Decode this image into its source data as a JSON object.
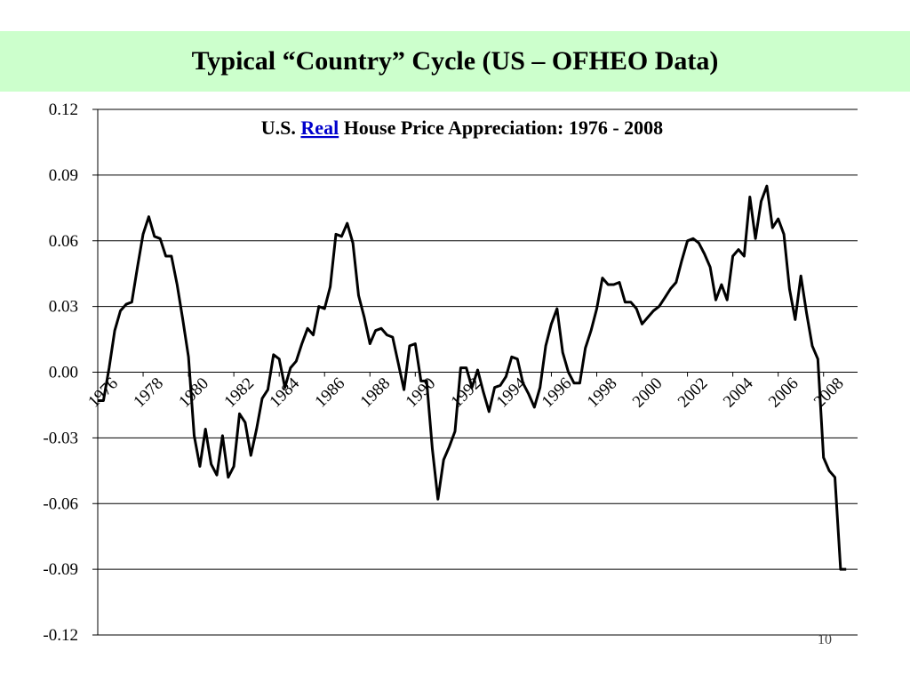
{
  "slide": {
    "title": "Typical “Country” Cycle (US – OFHEO Data)",
    "page_number": "10",
    "accent_color": "#ccffcc"
  },
  "chart_data": {
    "type": "line",
    "title_parts": {
      "prefix": "U.S. ",
      "emphasis": "Real",
      "suffix": " House Price Appreciation:  1976 - 2008"
    },
    "xlabel": "",
    "ylabel": "",
    "ylim": [
      -0.12,
      0.12
    ],
    "xlim": [
      1976,
      2009.5
    ],
    "y_ticks": [
      "0.12",
      "0.09",
      "0.06",
      "0.03",
      "0.00",
      "-0.03",
      "-0.06",
      "-0.09",
      "-0.12"
    ],
    "x_ticks": [
      "1976",
      "1978",
      "1980",
      "1982",
      "1984",
      "1986",
      "1988",
      "1990",
      "1992",
      "1994",
      "1996",
      "1998",
      "2000",
      "2002",
      "2004",
      "2006",
      "2008"
    ],
    "grid": true,
    "line_color": "#000000",
    "series": [
      {
        "x": [
          1976.0,
          1976.25,
          1976.5,
          1976.75,
          1977.0,
          1977.25,
          1977.5,
          1977.75,
          1978.0,
          1978.25,
          1978.5,
          1978.75,
          1979.0,
          1979.25,
          1979.5,
          1979.75,
          1980.0,
          1980.25,
          1980.5,
          1980.75,
          1981.0,
          1981.25,
          1981.5,
          1981.75,
          1982.0,
          1982.25,
          1982.5,
          1982.75,
          1983.0,
          1983.25,
          1983.5,
          1983.75,
          1984.0,
          1984.25,
          1984.5,
          1984.75,
          1985.0,
          1985.25,
          1985.5,
          1985.75,
          1986.0,
          1986.25,
          1986.5,
          1986.75,
          1987.0,
          1987.25,
          1987.5,
          1987.75,
          1988.0,
          1988.25,
          1988.5,
          1988.75,
          1989.0,
          1989.25,
          1989.5,
          1989.75,
          1990.0,
          1990.25,
          1990.5,
          1990.75,
          1991.0,
          1991.25,
          1991.5,
          1991.75,
          1992.0,
          1992.25,
          1992.5,
          1992.75,
          1993.0,
          1993.25,
          1993.5,
          1993.75,
          1994.0,
          1994.25,
          1994.5,
          1994.75,
          1995.0,
          1995.25,
          1995.5,
          1995.75,
          1996.0,
          1996.25,
          1996.5,
          1996.75,
          1997.0,
          1997.25,
          1997.5,
          1997.75,
          1998.0,
          1998.25,
          1998.5,
          1998.75,
          1999.0,
          1999.25,
          1999.5,
          1999.75,
          2000.0,
          2000.25,
          2000.5,
          2000.75,
          2001.0,
          2001.25,
          2001.5,
          2001.75,
          2002.0,
          2002.25,
          2002.5,
          2002.75,
          2003.0,
          2003.25,
          2003.5,
          2003.75,
          2004.0,
          2004.25,
          2004.5,
          2004.75,
          2005.0,
          2005.25,
          2005.5,
          2005.75,
          2006.0,
          2006.25,
          2006.5,
          2006.75,
          2007.0,
          2007.25,
          2007.5,
          2007.75,
          2008.0,
          2008.25,
          2008.5,
          2008.75,
          2009.0
        ],
        "values": [
          -0.013,
          -0.013,
          0.002,
          0.019,
          0.028,
          0.031,
          0.032,
          0.048,
          0.063,
          0.071,
          0.062,
          0.061,
          0.053,
          0.053,
          0.04,
          0.024,
          0.007,
          -0.029,
          -0.043,
          -0.026,
          -0.042,
          -0.047,
          -0.029,
          -0.048,
          -0.043,
          -0.019,
          -0.023,
          -0.038,
          -0.026,
          -0.012,
          -0.008,
          0.008,
          0.006,
          -0.007,
          0.002,
          0.005,
          0.013,
          0.02,
          0.017,
          0.03,
          0.029,
          0.039,
          0.063,
          0.062,
          0.068,
          0.059,
          0.035,
          0.025,
          0.013,
          0.019,
          0.02,
          0.017,
          0.016,
          0.004,
          -0.008,
          0.012,
          0.013,
          -0.004,
          -0.004,
          -0.035,
          -0.058,
          -0.04,
          -0.034,
          -0.027,
          0.002,
          0.002,
          -0.007,
          0.001,
          -0.009,
          -0.018,
          -0.007,
          -0.006,
          -0.002,
          0.007,
          0.006,
          -0.005,
          -0.01,
          -0.016,
          -0.007,
          0.012,
          0.022,
          0.029,
          0.009,
          0.0,
          -0.005,
          -0.005,
          0.011,
          0.019,
          0.029,
          0.043,
          0.04,
          0.04,
          0.041,
          0.032,
          0.032,
          0.029,
          0.022,
          0.025,
          0.028,
          0.03,
          0.034,
          0.038,
          0.041,
          0.051,
          0.06,
          0.061,
          0.059,
          0.054,
          0.048,
          0.033,
          0.04,
          0.033,
          0.053,
          0.056,
          0.053,
          0.08,
          0.061,
          0.078,
          0.085,
          0.066,
          0.07,
          0.063,
          0.038,
          0.024,
          0.044,
          0.027,
          0.012,
          0.006,
          -0.039,
          -0.045,
          -0.048,
          -0.09,
          -0.09
        ]
      }
    ]
  }
}
